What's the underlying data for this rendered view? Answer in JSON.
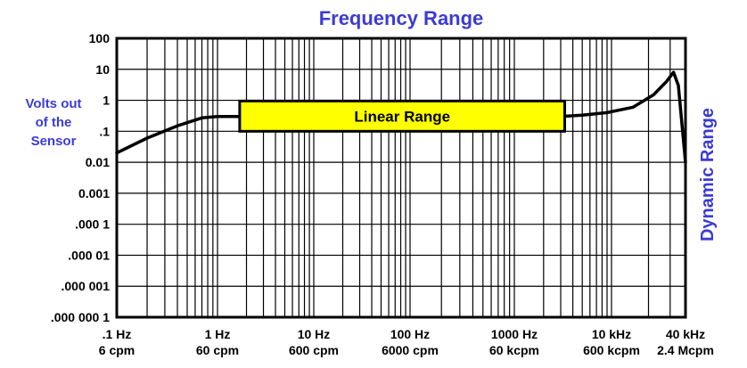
{
  "colors": {
    "title": "#3b3bd6",
    "axis_label": "#3b3bd6",
    "highlight_fill": "#ffff00",
    "line": "#000000"
  },
  "chart_data": {
    "type": "line",
    "title": "Frequency Range",
    "ylabel_lines": [
      "Volts out",
      "of the",
      "Sensor"
    ],
    "right_label": "Dynamic Range",
    "y_scale": "log",
    "x_scale": "log",
    "ylim": [
      1e-07,
      100
    ],
    "xlim_hz": [
      0.1,
      40000
    ],
    "grid": true,
    "y_ticks": [
      {
        "value": 100,
        "label": "100"
      },
      {
        "value": 10,
        "label": "10"
      },
      {
        "value": 1,
        "label": "1"
      },
      {
        "value": 0.1,
        "label": ".1"
      },
      {
        "value": 0.01,
        "label": "0.01"
      },
      {
        "value": 0.001,
        "label": "0.001"
      },
      {
        "value": 0.0001,
        "label": ".000 1"
      },
      {
        "value": 1e-05,
        "label": ".000 01"
      },
      {
        "value": 1e-06,
        "label": ".000 001"
      },
      {
        "value": 1e-07,
        "label": ".000 000 1"
      }
    ],
    "x_ticks": [
      {
        "value": 0.1,
        "line1": ".1 Hz",
        "line2": "6 cpm"
      },
      {
        "value": 1,
        "line1": "1 Hz",
        "line2": "60 cpm"
      },
      {
        "value": 10,
        "line1": "10 Hz",
        "line2": "600 cpm"
      },
      {
        "value": 100,
        "line1": "100 Hz",
        "line2": "6000 cpm"
      },
      {
        "value": 1000,
        "line1": "1000 Hz",
        "line2": "60 kcpm"
      },
      {
        "value": 10000,
        "line1": "10 kHz",
        "line2": "600 kcpm"
      },
      {
        "value": 40000,
        "line1": "40 kHz",
        "line2": "2.4 Mcpm"
      }
    ],
    "series": [
      {
        "points": [
          {
            "x": 0.1,
            "y": 0.02
          },
          {
            "x": 0.2,
            "y": 0.06
          },
          {
            "x": 0.4,
            "y": 0.15
          },
          {
            "x": 0.7,
            "y": 0.27
          },
          {
            "x": 1.0,
            "y": 0.3
          },
          {
            "x": 1.6,
            "y": 0.3
          },
          {
            "x": 3000,
            "y": 0.3
          },
          {
            "x": 5000,
            "y": 0.33
          },
          {
            "x": 9000,
            "y": 0.4
          },
          {
            "x": 15000,
            "y": 0.6
          },
          {
            "x": 22000,
            "y": 1.5
          },
          {
            "x": 28000,
            "y": 4
          },
          {
            "x": 32000,
            "y": 8
          },
          {
            "x": 35000,
            "y": 3
          },
          {
            "x": 40000,
            "y": 0.01
          }
        ]
      }
    ],
    "annotation": {
      "text": "Linear Range",
      "x_from": 1.7,
      "x_to": 3300,
      "y_low": 0.1,
      "y_high": 0.95
    }
  }
}
